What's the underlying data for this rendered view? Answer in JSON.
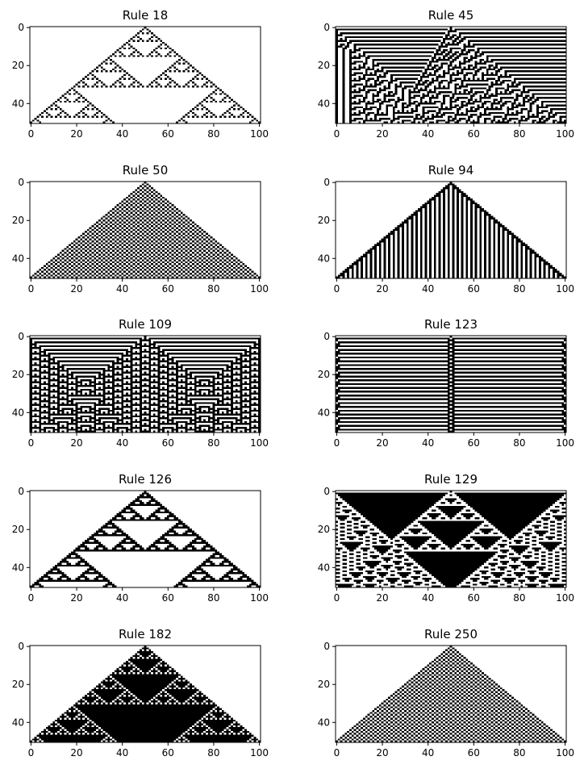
{
  "figure": {
    "background": "#ffffff"
  },
  "chart_data": [
    {
      "type": "heatmap",
      "title": "Rule 18",
      "rule": 18,
      "cols": 101,
      "rows": 51,
      "init": "single",
      "xticks": [
        "0",
        "20",
        "40",
        "60",
        "80",
        "100"
      ],
      "yticks": [
        "0",
        "20",
        "40"
      ],
      "cmap": "binary",
      "grid": false
    },
    {
      "type": "heatmap",
      "title": "Rule 45",
      "rule": 45,
      "cols": 101,
      "rows": 51,
      "init": "single",
      "xticks": [
        "0",
        "20",
        "40",
        "60",
        "80",
        "100"
      ],
      "yticks": [
        "0",
        "20",
        "40"
      ],
      "cmap": "binary",
      "grid": false
    },
    {
      "type": "heatmap",
      "title": "Rule 50",
      "rule": 50,
      "cols": 101,
      "rows": 51,
      "init": "single",
      "xticks": [
        "0",
        "20",
        "40",
        "60",
        "80",
        "100"
      ],
      "yticks": [
        "0",
        "20",
        "40"
      ],
      "cmap": "binary",
      "grid": false
    },
    {
      "type": "heatmap",
      "title": "Rule 94",
      "rule": 94,
      "cols": 101,
      "rows": 51,
      "init": "single",
      "xticks": [
        "0",
        "20",
        "40",
        "60",
        "80",
        "100"
      ],
      "yticks": [
        "0",
        "20",
        "40"
      ],
      "cmap": "binary",
      "grid": false
    },
    {
      "type": "heatmap",
      "title": "Rule 109",
      "rule": 109,
      "cols": 101,
      "rows": 51,
      "init": "single",
      "xticks": [
        "0",
        "20",
        "40",
        "60",
        "80",
        "100"
      ],
      "yticks": [
        "0",
        "20",
        "40"
      ],
      "cmap": "binary",
      "grid": false
    },
    {
      "type": "heatmap",
      "title": "Rule 123",
      "rule": 123,
      "cols": 101,
      "rows": 51,
      "init": "single",
      "xticks": [
        "0",
        "20",
        "40",
        "60",
        "80",
        "100"
      ],
      "yticks": [
        "0",
        "20",
        "40"
      ],
      "cmap": "binary",
      "grid": false
    },
    {
      "type": "heatmap",
      "title": "Rule 126",
      "rule": 126,
      "cols": 101,
      "rows": 51,
      "init": "single",
      "xticks": [
        "0",
        "20",
        "40",
        "60",
        "80",
        "100"
      ],
      "yticks": [
        "0",
        "20",
        "40"
      ],
      "cmap": "binary",
      "grid": false
    },
    {
      "type": "heatmap",
      "title": "Rule 129",
      "rule": 129,
      "cols": 101,
      "rows": 51,
      "init": "single",
      "xticks": [
        "0",
        "20",
        "40",
        "60",
        "80",
        "100"
      ],
      "yticks": [
        "0",
        "20",
        "40"
      ],
      "cmap": "binary",
      "grid": false
    },
    {
      "type": "heatmap",
      "title": "Rule 182",
      "rule": 182,
      "cols": 101,
      "rows": 51,
      "init": "single",
      "xticks": [
        "0",
        "20",
        "40",
        "60",
        "80",
        "100"
      ],
      "yticks": [
        "0",
        "20",
        "40"
      ],
      "cmap": "binary",
      "grid": false
    },
    {
      "type": "heatmap",
      "title": "Rule 250",
      "rule": 250,
      "cols": 101,
      "rows": 51,
      "init": "single",
      "xticks": [
        "0",
        "20",
        "40",
        "60",
        "80",
        "100"
      ],
      "yticks": [
        "0",
        "20",
        "40"
      ],
      "cmap": "binary",
      "grid": false
    }
  ]
}
